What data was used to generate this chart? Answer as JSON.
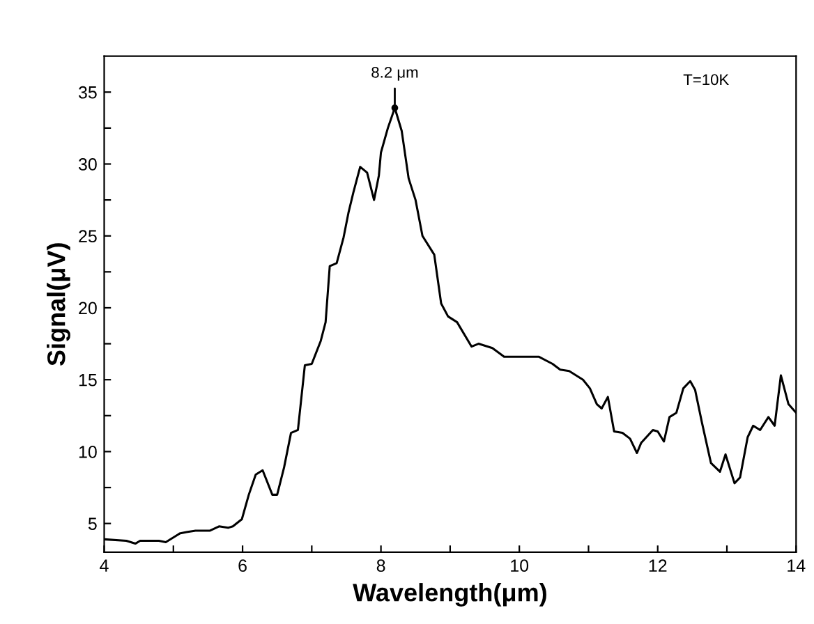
{
  "chart_data": {
    "type": "line",
    "xlabel": "Wavelength(μm)",
    "ylabel": "Signal(μV)",
    "annotations": [
      {
        "text": "8.2 μm",
        "x": 8.2,
        "y": 33.9
      },
      "T=10K"
    ],
    "xlim": [
      4,
      14
    ],
    "ylim": [
      3,
      37.5
    ],
    "xticks": [
      4,
      {
        "value": 5,
        "label": null
      },
      6,
      {
        "value": 7,
        "label": null
      },
      8,
      {
        "value": 9,
        "label": null
      },
      10,
      {
        "value": 11,
        "label": null
      },
      12,
      {
        "value": 13,
        "label": null
      },
      14
    ],
    "yticks": [
      5,
      {
        "value": 7.5,
        "label": null
      },
      10,
      {
        "value": 12.5,
        "label": null
      },
      15,
      {
        "value": 17.5,
        "label": null
      },
      20,
      {
        "value": 22.5,
        "label": null
      },
      25,
      {
        "value": 27.5,
        "label": null
      },
      30,
      {
        "value": 32.5,
        "label": null
      },
      35
    ],
    "grid": false,
    "marker": "none",
    "line_style": "solid",
    "series": [
      {
        "color": "#000000",
        "x": [
          4.0,
          4.32,
          4.45,
          4.52,
          4.79,
          4.89,
          5.09,
          5.19,
          5.32,
          5.53,
          5.66,
          5.79,
          5.86,
          5.99,
          6.09,
          6.19,
          6.29,
          6.43,
          6.5,
          6.6,
          6.7,
          6.8,
          6.9,
          7.0,
          7.13,
          7.2,
          7.26,
          7.36,
          7.46,
          7.53,
          7.6,
          7.7,
          7.8,
          7.9,
          7.97,
          8.0,
          8.1,
          8.2,
          8.3,
          8.4,
          8.5,
          8.6,
          8.77,
          8.87,
          8.97,
          9.1,
          9.31,
          9.41,
          9.61,
          9.78,
          10.28,
          10.48,
          10.59,
          10.72,
          10.92,
          11.02,
          11.12,
          11.19,
          11.28,
          11.37,
          11.49,
          11.6,
          11.7,
          11.76,
          11.93,
          12.0,
          12.09,
          12.17,
          12.27,
          12.37,
          12.47,
          12.54,
          12.64,
          12.77,
          12.9,
          12.98,
          13.11,
          13.19,
          13.3,
          13.38,
          13.48,
          13.6,
          13.69,
          13.78,
          13.89,
          14.0
        ],
        "values": [
          3.9,
          3.8,
          3.6,
          3.8,
          3.8,
          3.7,
          4.3,
          4.4,
          4.5,
          4.5,
          4.8,
          4.7,
          4.8,
          5.3,
          7.0,
          8.4,
          8.7,
          7.0,
          7.0,
          8.9,
          11.3,
          11.5,
          16.0,
          16.1,
          17.7,
          19.0,
          22.9,
          23.1,
          24.9,
          26.6,
          28.0,
          29.8,
          29.4,
          27.5,
          29.2,
          30.8,
          32.5,
          33.9,
          32.3,
          29.0,
          27.5,
          25.0,
          23.7,
          20.3,
          19.4,
          19.0,
          17.3,
          17.5,
          17.2,
          16.6,
          16.6,
          16.1,
          15.7,
          15.6,
          15.0,
          14.4,
          13.3,
          13.0,
          13.8,
          11.4,
          11.3,
          10.9,
          9.9,
          10.6,
          11.5,
          11.4,
          10.7,
          12.4,
          12.7,
          14.4,
          14.9,
          14.3,
          12.0,
          9.2,
          8.6,
          9.8,
          7.8,
          8.2,
          11.0,
          11.8,
          11.5,
          12.4,
          11.8,
          15.3,
          13.3,
          12.7
        ]
      }
    ]
  }
}
